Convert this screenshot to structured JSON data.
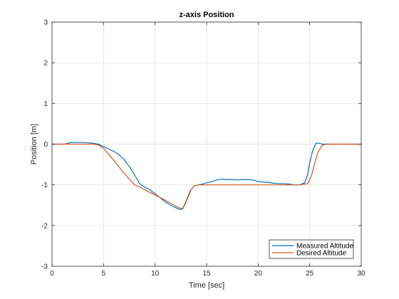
{
  "chart_data": {
    "type": "line",
    "title": "z-axis Position",
    "xlabel": "Time [sec]",
    "ylabel": "Position [m]",
    "xlim": [
      0,
      30
    ],
    "ylim": [
      -3,
      3
    ],
    "xticks": [
      0,
      5,
      10,
      15,
      20,
      25,
      30
    ],
    "yticks": [
      -3,
      -2,
      -1,
      0,
      1,
      2,
      3
    ],
    "xtick_labels": [
      "0",
      "5",
      "10",
      "15",
      "20",
      "25",
      "30"
    ],
    "ytick_labels": [
      "-3",
      "-2",
      "-1",
      "0",
      "1",
      "2",
      "3"
    ],
    "grid": true,
    "legend_position": "bottom-right",
    "series": [
      {
        "name": "Measured Altitude",
        "color": "#0072BD",
        "x": [
          0,
          1.2,
          1.8,
          2.5,
          3.2,
          4.0,
          4.5,
          5.0,
          5.5,
          6.0,
          6.5,
          7.0,
          7.5,
          8.0,
          8.5,
          9.0,
          9.5,
          10.0,
          10.5,
          11.0,
          11.5,
          12.0,
          12.3,
          12.6,
          12.9,
          13.2,
          13.5,
          13.8,
          14.2,
          14.6,
          15.0,
          15.5,
          16.0,
          16.5,
          17.0,
          17.5,
          18.0,
          18.5,
          19.0,
          19.5,
          20.0,
          20.5,
          21.0,
          21.5,
          22.0,
          22.5,
          23.0,
          23.5,
          24.0,
          24.5,
          24.8,
          25.0,
          25.3,
          25.6,
          25.9,
          26.2,
          26.5,
          27.0,
          28.0,
          30.0
        ],
        "y": [
          0,
          0.0,
          0.04,
          0.04,
          0.04,
          0.02,
          0.0,
          -0.06,
          -0.12,
          -0.18,
          -0.26,
          -0.38,
          -0.55,
          -0.75,
          -0.97,
          -1.06,
          -1.12,
          -1.22,
          -1.32,
          -1.42,
          -1.5,
          -1.56,
          -1.6,
          -1.6,
          -1.48,
          -1.3,
          -1.12,
          -1.02,
          -1.0,
          -0.98,
          -0.95,
          -0.92,
          -0.88,
          -0.86,
          -0.87,
          -0.87,
          -0.88,
          -0.87,
          -0.87,
          -0.88,
          -0.92,
          -0.93,
          -0.94,
          -0.96,
          -0.97,
          -0.97,
          -0.98,
          -1.0,
          -1.0,
          -0.95,
          -0.75,
          -0.45,
          -0.15,
          0.02,
          0.03,
          0.0,
          0.0,
          0.0,
          0.0,
          0.0
        ]
      },
      {
        "name": "Desired Altitude",
        "color": "#D95319",
        "x": [
          0,
          4.0,
          4.5,
          5.0,
          6.0,
          7.0,
          8.0,
          8.5,
          9.0,
          10.0,
          11.0,
          12.0,
          12.4,
          12.7,
          13.0,
          13.4,
          13.8,
          14.2,
          15.0,
          20.0,
          24.0,
          24.8,
          25.2,
          25.5,
          25.8,
          26.2,
          26.6,
          27.0,
          30.0
        ],
        "y": [
          0,
          0,
          -0.02,
          -0.1,
          -0.4,
          -0.72,
          -1.0,
          -1.05,
          -1.12,
          -1.25,
          -1.38,
          -1.52,
          -1.57,
          -1.58,
          -1.4,
          -1.15,
          -1.02,
          -1.0,
          -1.0,
          -1.0,
          -1.0,
          -0.97,
          -0.75,
          -0.45,
          -0.2,
          -0.03,
          0.0,
          0.0,
          0.0
        ]
      }
    ]
  }
}
